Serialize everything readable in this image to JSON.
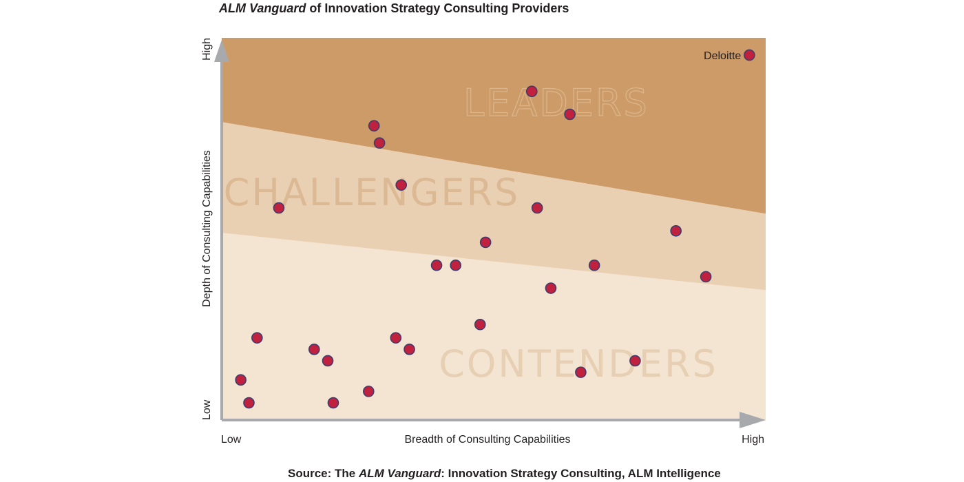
{
  "title": {
    "italic_part": "ALM Vanguard",
    "rest": " of Innovation Strategy Consulting Providers"
  },
  "source": {
    "prefix": "Source: The ",
    "italic_part": "ALM Vanguard",
    "rest": ": Innovation Strategy Consulting, ALM Intelligence"
  },
  "chart_data": {
    "type": "scatter",
    "xlabel": "Breadth of Consulting Capabilities",
    "ylabel": "Depth of Consulting Capabilities",
    "x_tick_labels": [
      "Low",
      "High"
    ],
    "y_tick_labels": [
      "Low",
      "High"
    ],
    "xlim": [
      0,
      100
    ],
    "ylim": [
      0,
      100
    ],
    "grid": false,
    "zones": [
      {
        "name": "LEADERS",
        "color": "#cc9b67",
        "label_color": "#dcb58b",
        "boundary": [
          [
            0,
            78
          ],
          [
            100,
            54
          ]
        ]
      },
      {
        "name": "CHALLENGERS",
        "color": "#ead0b3",
        "label_color": "#dcb995",
        "boundary": [
          [
            0,
            49
          ],
          [
            100,
            34
          ]
        ]
      },
      {
        "name": "CONTENDERS",
        "color": "#f4e5d3",
        "label_color": "#e6cfb2"
      }
    ],
    "point_color": "#c0213f",
    "point_stroke": "#3d3c6d",
    "points": [
      {
        "x": 97,
        "y": 95.5,
        "label": "Deloitte"
      },
      {
        "x": 57,
        "y": 86
      },
      {
        "x": 64,
        "y": 80
      },
      {
        "x": 28,
        "y": 77
      },
      {
        "x": 29,
        "y": 72.5
      },
      {
        "x": 33,
        "y": 61.5
      },
      {
        "x": 10.5,
        "y": 55.5
      },
      {
        "x": 58,
        "y": 55.5
      },
      {
        "x": 48.5,
        "y": 46.5
      },
      {
        "x": 83.5,
        "y": 49.5
      },
      {
        "x": 39.5,
        "y": 40.5
      },
      {
        "x": 43,
        "y": 40.5
      },
      {
        "x": 68.5,
        "y": 40.5
      },
      {
        "x": 89,
        "y": 37.5
      },
      {
        "x": 60.5,
        "y": 34.5
      },
      {
        "x": 47.5,
        "y": 25
      },
      {
        "x": 6.5,
        "y": 21.5
      },
      {
        "x": 32,
        "y": 21.5
      },
      {
        "x": 34.5,
        "y": 18.5
      },
      {
        "x": 17,
        "y": 18.5
      },
      {
        "x": 19.5,
        "y": 15.5
      },
      {
        "x": 76,
        "y": 15.5
      },
      {
        "x": 66,
        "y": 12.5
      },
      {
        "x": 3.5,
        "y": 10.5
      },
      {
        "x": 27,
        "y": 7.5
      },
      {
        "x": 5,
        "y": 4.5
      },
      {
        "x": 20.5,
        "y": 4.5
      }
    ]
  }
}
